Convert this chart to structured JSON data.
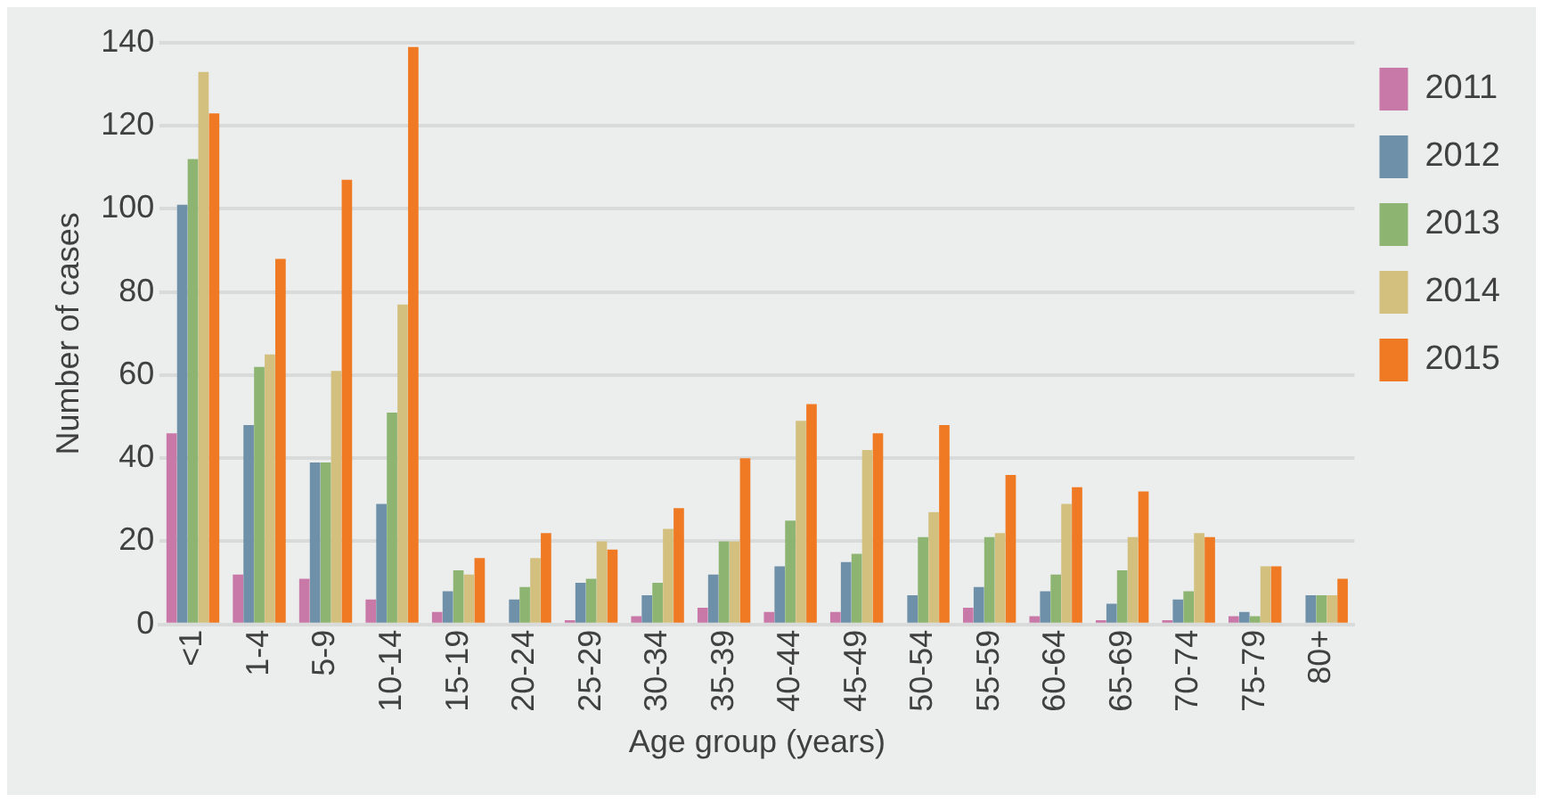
{
  "chart_data": {
    "type": "bar",
    "xlabel": "Age group (years)",
    "ylabel": "Number of cases",
    "categories": [
      "<1",
      "1-4",
      "5-9",
      "10-14",
      "15-19",
      "20-24",
      "25-29",
      "30-34",
      "35-39",
      "40-44",
      "45-49",
      "50-54",
      "55-59",
      "60-64",
      "65-69",
      "70-74",
      "75-79",
      "80+"
    ],
    "series": [
      {
        "name": "2011",
        "color": "#c879a8",
        "values": [
          46,
          12,
          11,
          6,
          3,
          0,
          1,
          2,
          4,
          3,
          3,
          0,
          4,
          2,
          1,
          1,
          2,
          0
        ]
      },
      {
        "name": "2012",
        "color": "#6e90a8",
        "values": [
          101,
          48,
          39,
          29,
          8,
          6,
          10,
          7,
          12,
          14,
          15,
          7,
          9,
          8,
          5,
          6,
          3,
          7
        ]
      },
      {
        "name": "2013",
        "color": "#8db471",
        "values": [
          112,
          62,
          39,
          51,
          13,
          9,
          11,
          10,
          20,
          25,
          17,
          21,
          21,
          12,
          13,
          8,
          2,
          7
        ]
      },
      {
        "name": "2014",
        "color": "#d3bf7e",
        "values": [
          133,
          65,
          61,
          77,
          12,
          16,
          20,
          23,
          20,
          49,
          42,
          27,
          22,
          29,
          21,
          22,
          14,
          7
        ]
      },
      {
        "name": "2015",
        "color": "#ef7a23",
        "values": [
          123,
          88,
          107,
          139,
          16,
          22,
          18,
          28,
          40,
          53,
          46,
          48,
          36,
          33,
          32,
          21,
          14,
          11
        ]
      }
    ],
    "ylim": [
      0,
      140
    ],
    "yticks": [
      0,
      20,
      40,
      60,
      80,
      100,
      120,
      140
    ],
    "grid": "y",
    "legend": "right"
  }
}
